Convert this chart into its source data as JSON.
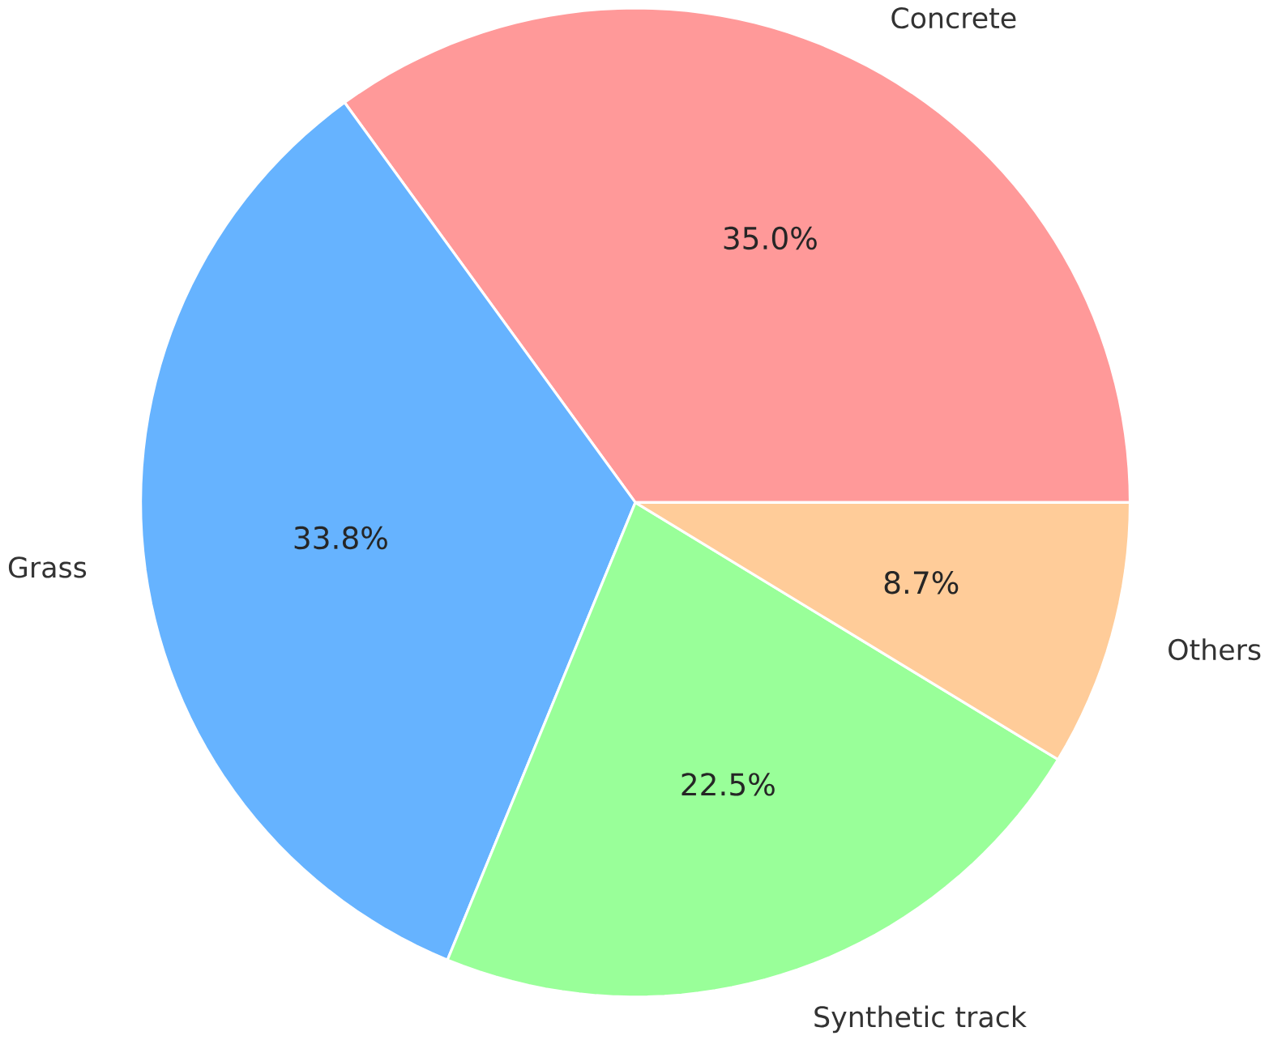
{
  "chart_data": {
    "type": "pie",
    "categories": [
      "Concrete",
      "Grass",
      "Synthetic track",
      "Others"
    ],
    "values": [
      35.0,
      33.8,
      22.5,
      8.7
    ],
    "colors": [
      "#ff9999",
      "#66b3ff",
      "#99ff99",
      "#ffcc99"
    ],
    "value_labels": [
      "35.0%",
      "33.8%",
      "22.5%",
      "8.7%"
    ]
  }
}
